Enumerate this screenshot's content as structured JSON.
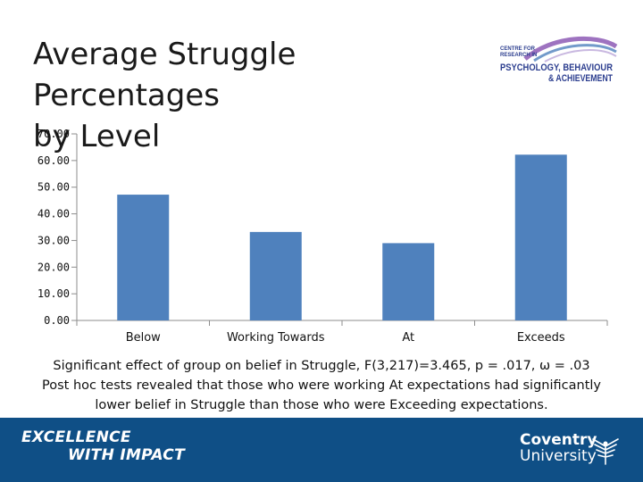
{
  "slide": {
    "title_line1": "Average Struggle Percentages",
    "title_line2": "by Level",
    "caption": [
      "Significant effect of group on belief in Struggle, F(3,217)=3.465, p = .017, ω = .03",
      "Post hoc tests revealed that those who were working At expectations had significantly",
      "lower belief in Struggle than those who were Exceeding expectations."
    ]
  },
  "logos": {
    "top_right": {
      "line1": "CENTRE FOR",
      "line2": "RESEARCH IN",
      "line3": "PSYCHOLOGY, BEHAVIOUR",
      "line4": "& ACHIEVEMENT"
    },
    "footer_left": {
      "line1": "EXCELLENCE",
      "line2": "WITH IMPACT"
    },
    "footer_right": {
      "line1": "Coventry",
      "line2": "University"
    }
  },
  "colors": {
    "bar": "#4f81bd",
    "axis": "#8c8c8c",
    "footer_bg": "#0f4f86",
    "logo_blue": "#2c3e8f",
    "logo_purple": "#8d5bb5"
  },
  "chart_data": {
    "type": "bar",
    "title": "",
    "xlabel": "",
    "ylabel": "",
    "categories": [
      "Below",
      "Working Towards",
      "At",
      "Exceeds"
    ],
    "values": [
      47.2,
      33.2,
      29.0,
      62.2
    ],
    "ylim": [
      0,
      70
    ],
    "yticks": [
      "0.00",
      "10.00",
      "20.00",
      "30.00",
      "40.00",
      "50.00",
      "60.00",
      "70.00"
    ],
    "grid": false,
    "legend": "none"
  }
}
